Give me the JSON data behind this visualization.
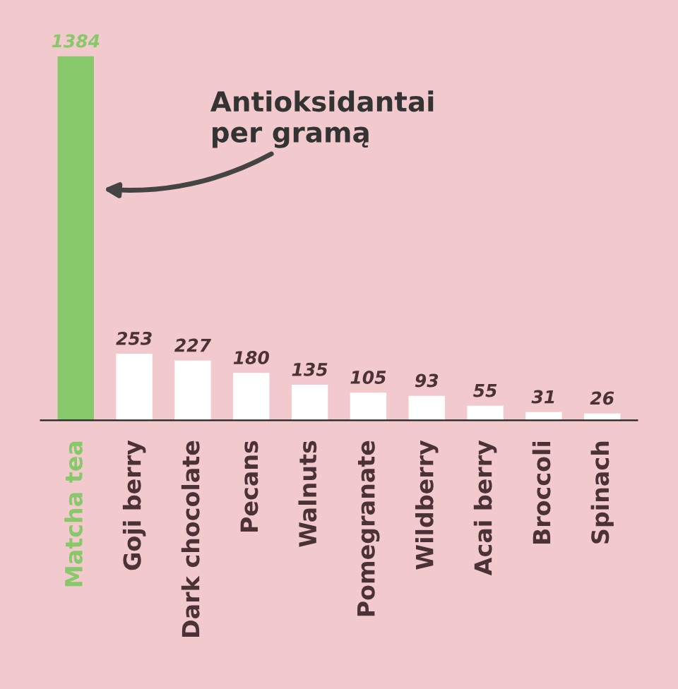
{
  "chart_data": {
    "type": "bar",
    "categories": [
      "Matcha tea",
      "Goji berry",
      "Dark chocolate",
      "Pecans",
      "Walnuts",
      "Pomegranate",
      "Wildberry",
      "Acai berry",
      "Broccoli",
      "Spinach"
    ],
    "values": [
      1384,
      253,
      227,
      180,
      135,
      105,
      93,
      55,
      31,
      26
    ],
    "colors": [
      "#86c86a",
      "#ffffff",
      "#ffffff",
      "#ffffff",
      "#ffffff",
      "#ffffff",
      "#ffffff",
      "#ffffff",
      "#ffffff",
      "#ffffff"
    ],
    "data_labels": true,
    "tick_labels": "x",
    "grid": false,
    "legend": false,
    "annotations": [
      "Antioksidantai\nper gramą"
    ]
  }
}
